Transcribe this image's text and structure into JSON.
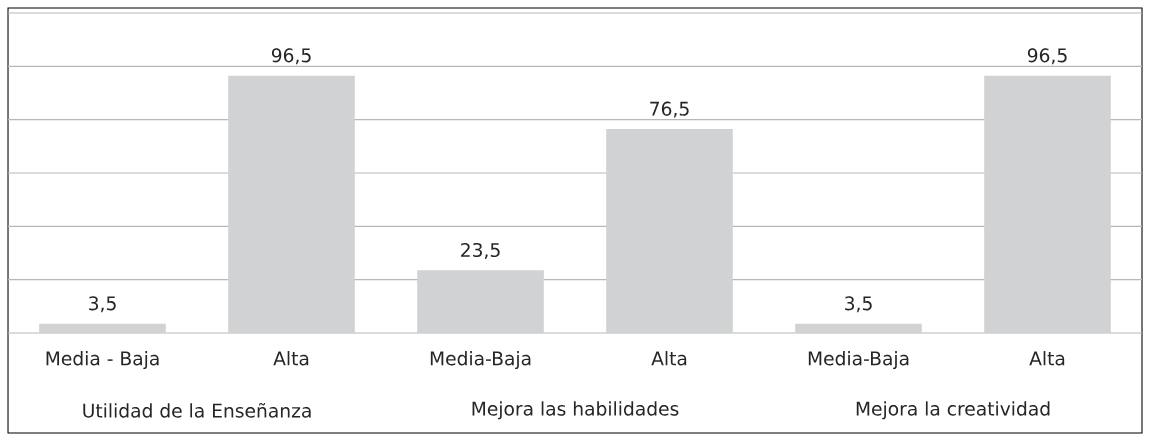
{
  "chart_data": {
    "type": "bar",
    "categories": [
      "Media - Baja",
      "Alta",
      "Media-Baja",
      "Alta",
      "Media-Baja",
      "Alta"
    ],
    "values": [
      3.5,
      96.5,
      23.5,
      76.5,
      3.5,
      96.5
    ],
    "value_labels": [
      "3,5",
      "96,5",
      "23,5",
      "76,5",
      "3,5",
      "96,5"
    ],
    "color": "#d1d2d4",
    "ylim": [
      0,
      120
    ],
    "yticks": [
      {
        "value": 0,
        "label": null
      },
      {
        "value": 20,
        "label": null
      },
      {
        "value": 40,
        "label": null
      },
      {
        "value": 60,
        "label": null
      },
      {
        "value": 80,
        "label": null
      },
      {
        "value": 100,
        "label": null
      },
      {
        "value": 120,
        "label": null
      }
    ],
    "tick_labels": "x",
    "grid": "y",
    "annotations": [
      "Utilidad de la Enseñanza",
      "Mejora las habilidades",
      "Mejora la creatividad"
    ]
  }
}
